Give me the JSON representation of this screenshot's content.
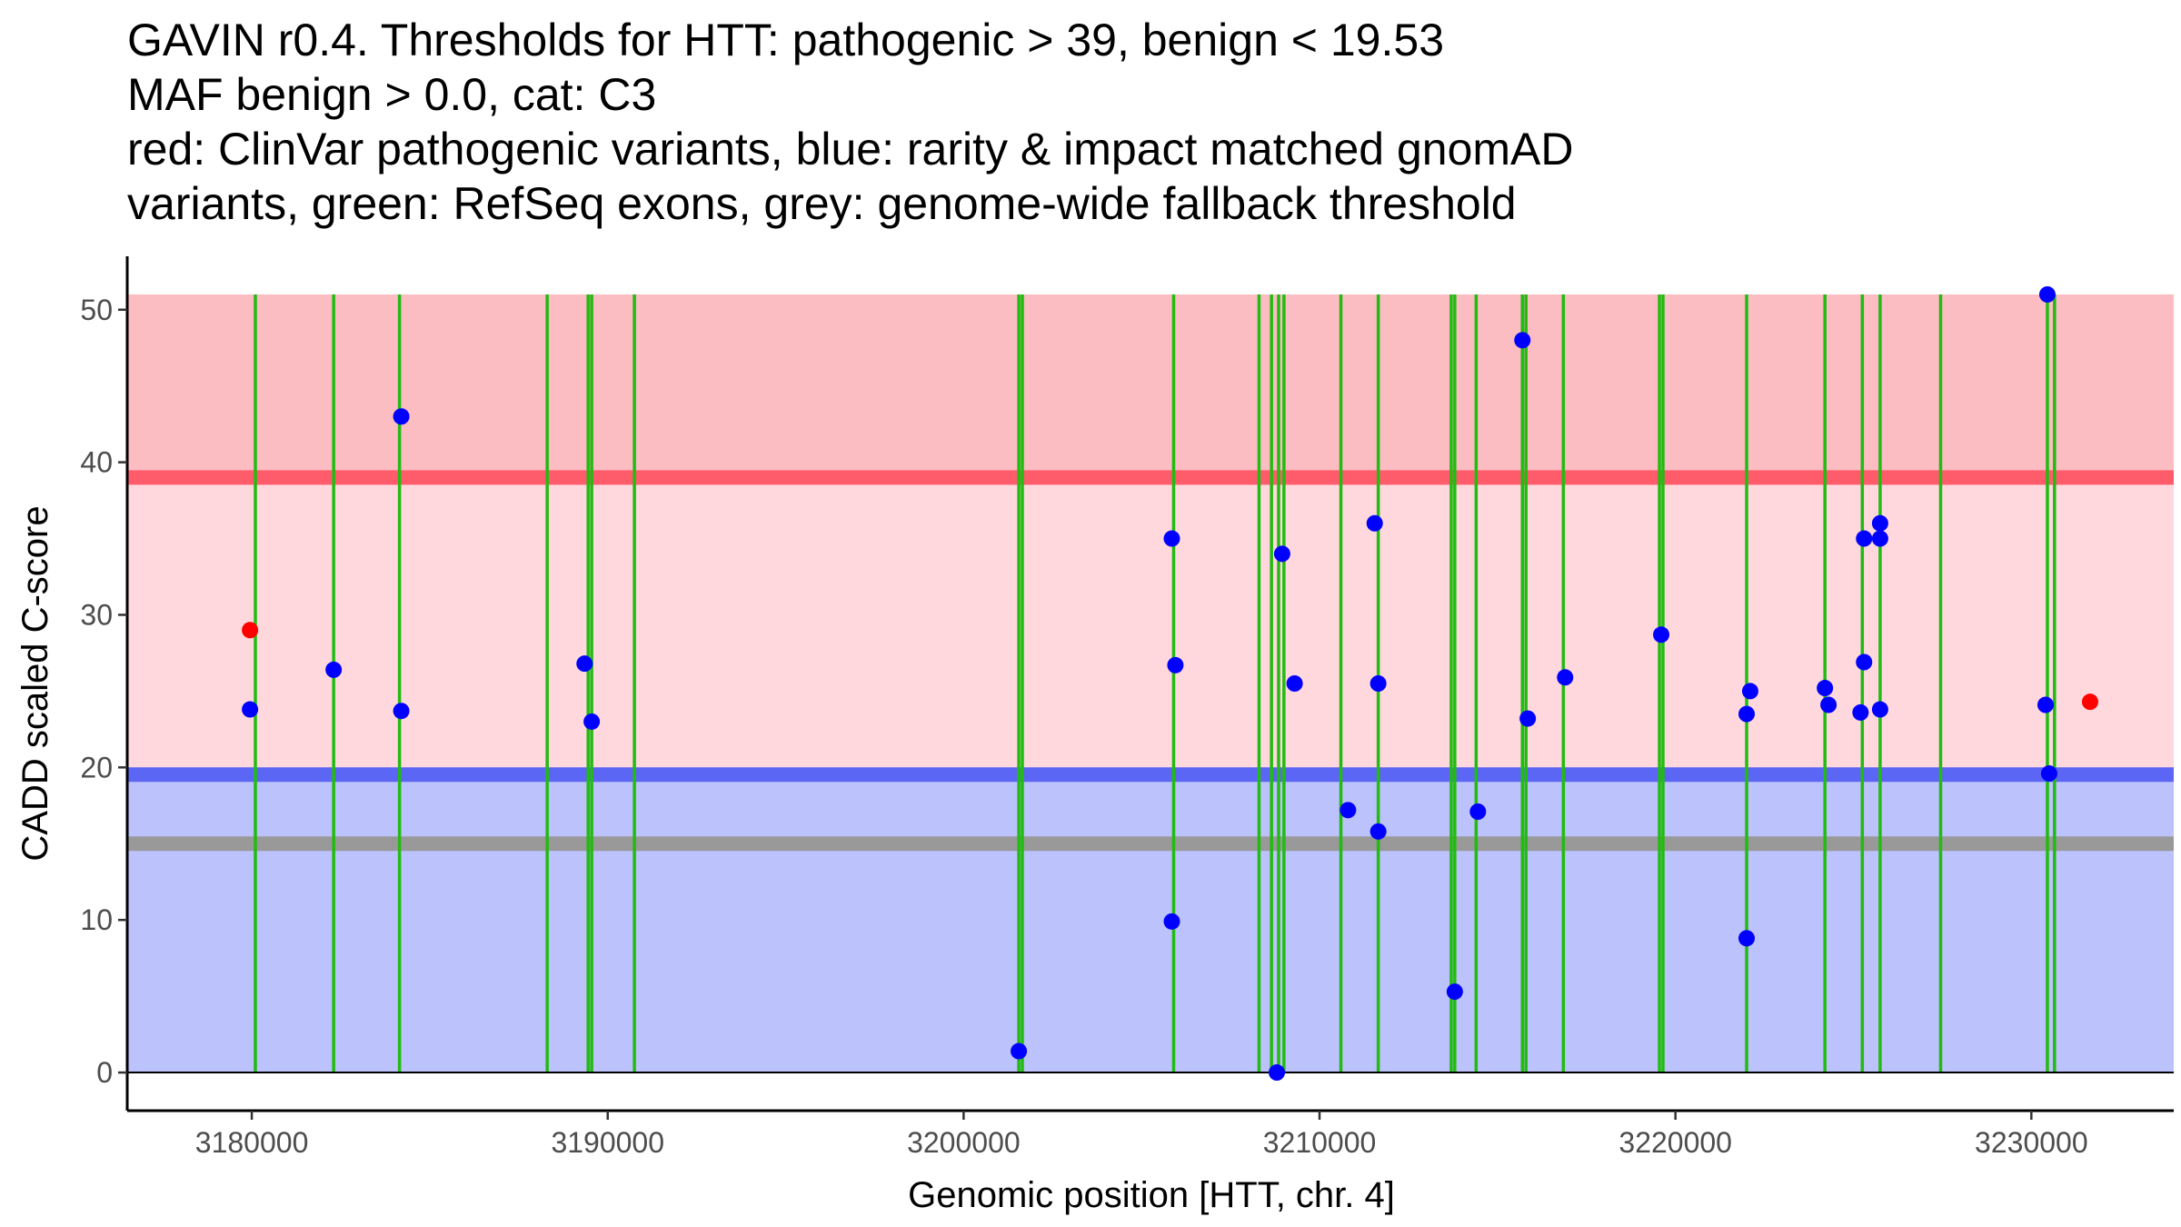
{
  "title_lines": [
    "GAVIN r0.4. Thresholds for HTT: pathogenic > 39, benign < 19.53",
    "MAF benign > 0.0, cat: C3",
    "red: ClinVar pathogenic variants, blue: rarity & impact matched gnomAD",
    "variants, green: RefSeq exons, grey: genome-wide fallback threshold"
  ],
  "chart_data": {
    "type": "scatter",
    "title": "GAVIN r0.4. Thresholds for HTT: pathogenic > 39, benign < 19.53 / MAF benign > 0.0, cat: C3",
    "xlabel": "Genomic position [HTT, chr. 4]",
    "ylabel": "CADD scaled C-score",
    "xlim": [
      3176500,
      3234000
    ],
    "ylim": [
      -2.5,
      53.5
    ],
    "x_ticks": [
      3180000,
      3190000,
      3200000,
      3210000,
      3220000,
      3230000
    ],
    "y_ticks": [
      0,
      10,
      20,
      30,
      40,
      50
    ],
    "thresholds": {
      "pathogenic": 39,
      "benign": 19.53,
      "fallback": 15,
      "top": 51
    },
    "colors": {
      "pathogenic_region": "#fbbcc2",
      "middle_region": "#ffd8de",
      "benign_region": "#bcc2fb",
      "pathogenic_line": "#ff5c6b",
      "benign_line": "#5b66f5",
      "fallback_line": "#999999",
      "exon": "#22bb11",
      "pathogenic_point": "#ff0000",
      "gnomad_point": "#0000ff"
    },
    "exons": [
      3180100,
      3182300,
      3184150,
      3188300,
      3189450,
      3189550,
      3190750,
      3201550,
      3201650,
      3205900,
      3208300,
      3208650,
      3208850,
      3209000,
      3210600,
      3211650,
      3213700,
      3213800,
      3214400,
      3215700,
      3215800,
      3216850,
      3219550,
      3219650,
      3222000,
      3224200,
      3225250,
      3225750,
      3227450,
      3230450,
      3230650
    ],
    "series": [
      {
        "name": "ClinVar pathogenic variants",
        "points": [
          [
            3179950,
            29.0
          ],
          [
            3231650,
            24.3
          ]
        ]
      },
      {
        "name": "rarity & impact matched gnomAD variants",
        "points": [
          [
            3179950,
            23.8
          ],
          [
            3182300,
            26.4
          ],
          [
            3184200,
            43.0
          ],
          [
            3184200,
            23.7
          ],
          [
            3189350,
            26.8
          ],
          [
            3189550,
            23.0
          ],
          [
            3201550,
            1.4
          ],
          [
            3205850,
            35.0
          ],
          [
            3205850,
            9.9
          ],
          [
            3205950,
            26.7
          ],
          [
            3208800,
            0.0
          ],
          [
            3208950,
            34.0
          ],
          [
            3209300,
            25.5
          ],
          [
            3210800,
            17.2
          ],
          [
            3211550,
            36.0
          ],
          [
            3211650,
            25.5
          ],
          [
            3211650,
            15.8
          ],
          [
            3213800,
            5.3
          ],
          [
            3214450,
            17.1
          ],
          [
            3215700,
            48.0
          ],
          [
            3215850,
            23.2
          ],
          [
            3216900,
            25.9
          ],
          [
            3219600,
            28.7
          ],
          [
            3222000,
            8.8
          ],
          [
            3222000,
            23.5
          ],
          [
            3222100,
            25.0
          ],
          [
            3224200,
            25.2
          ],
          [
            3224300,
            24.1
          ],
          [
            3225200,
            23.6
          ],
          [
            3225300,
            35.0
          ],
          [
            3225300,
            26.9
          ],
          [
            3225750,
            36.0
          ],
          [
            3225750,
            35.0
          ],
          [
            3225750,
            23.8
          ],
          [
            3230400,
            24.1
          ],
          [
            3230450,
            51.0
          ],
          [
            3230500,
            19.6
          ]
        ]
      }
    ]
  }
}
